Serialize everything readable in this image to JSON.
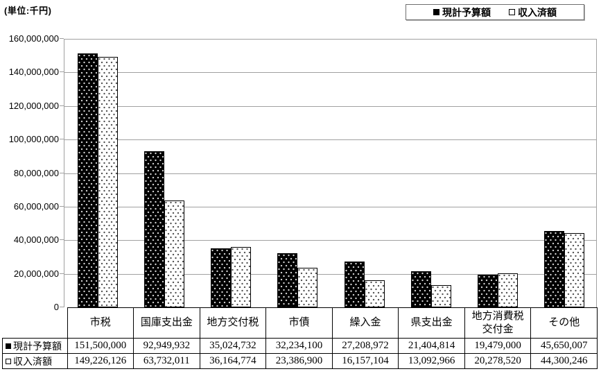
{
  "unit_label": "(単位:千円)",
  "legend": {
    "items": [
      {
        "label": "現計予算額",
        "marker": "black-square"
      },
      {
        "label": "収入済額",
        "marker": "white-square"
      }
    ]
  },
  "chart_data": {
    "type": "bar",
    "title": "",
    "categories": [
      "市税",
      "国庫支出金",
      "地方交付税",
      "市債",
      "繰入金",
      "県支出金",
      "地方消費税\n交付金",
      "その他"
    ],
    "series": [
      {
        "name": "現計予算額",
        "style": "black-dotted",
        "values": [
          151500000,
          92949932,
          35024732,
          32234100,
          27208972,
          21404814,
          19479000,
          45650007
        ]
      },
      {
        "name": "収入済額",
        "style": "white-dotted",
        "values": [
          149226126,
          63732011,
          36164774,
          23386900,
          16157104,
          13092966,
          20278520,
          44300246
        ]
      }
    ],
    "ylim": [
      0,
      160000000
    ],
    "ytick_step": 20000000,
    "ytick_labels": [
      "0",
      "20,000,000",
      "40,000,000",
      "60,000,000",
      "80,000,000",
      "100,000,000",
      "120,000,000",
      "140,000,000",
      "160,000,000"
    ],
    "grid": true,
    "legend_position": "top-right",
    "xlabel": "",
    "ylabel": "(単位:千円)"
  },
  "colors": {
    "bar_fill_primary": "#000000",
    "bar_fill_secondary": "#ffffff",
    "bar_border": "#000000",
    "gridline": "#a0a0a0",
    "table_border": "#000000",
    "text": "#000000",
    "background": "#ffffff"
  }
}
